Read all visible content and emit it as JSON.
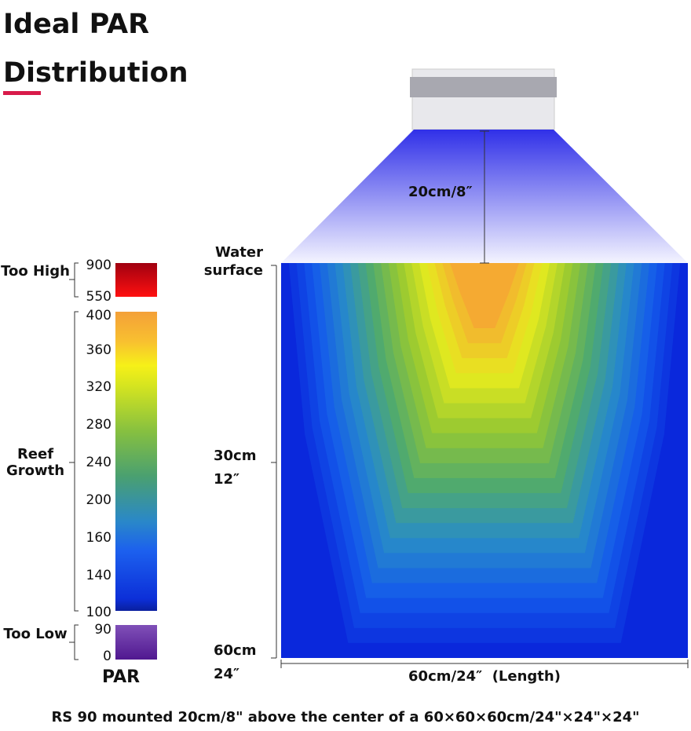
{
  "header": {
    "title": "Ideal PAR Distribution"
  },
  "scale": {
    "title": "PAR",
    "groups": [
      {
        "label": "Too High",
        "ticks": [
          900,
          550
        ]
      },
      {
        "label": "Reef Growth",
        "ticks": [
          400,
          360,
          320,
          280,
          240,
          200,
          160,
          140,
          100
        ]
      },
      {
        "label": "Too Low",
        "ticks": [
          90,
          0
        ]
      }
    ]
  },
  "diagram": {
    "mount_label": "20cm/8″",
    "water_label": "Water surface",
    "mid_depth_label": "30cm 12″",
    "bottom_depth_label": "60cm 24″",
    "length_label": "60cm/24″  (Length)"
  },
  "caption": "RS 90 mounted 20cm/8\" above the center of a 60×60×60cm/24\"×24\"×24\""
}
